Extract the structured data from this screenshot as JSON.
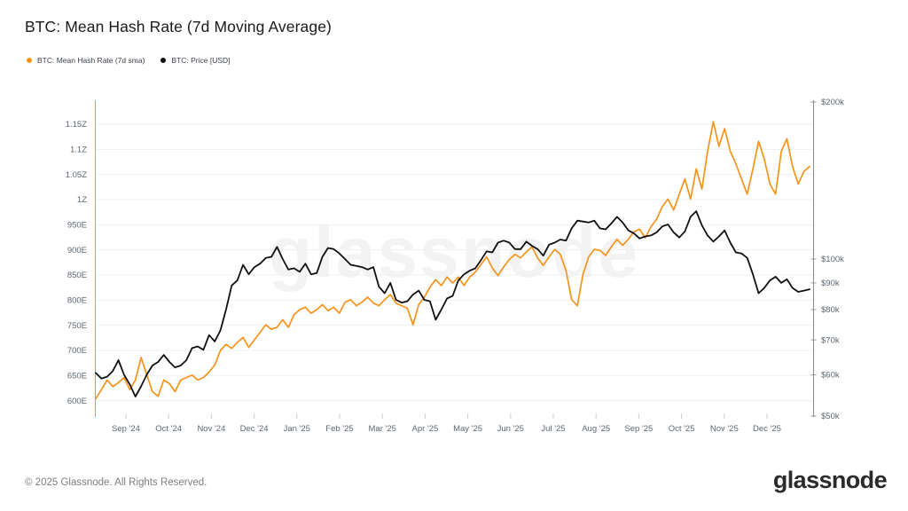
{
  "header": {
    "title": "BTC: Mean Hash Rate (7d Moving Average)"
  },
  "legend": {
    "items": [
      {
        "label": "BTC: Mean Hash Rate (7d sma)",
        "color": "#f7931a"
      },
      {
        "label": "BTC: Price [USD]",
        "color": "#101010"
      }
    ]
  },
  "watermark": {
    "text": "glassnode"
  },
  "footer": {
    "copyright": "© 2025 Glassnode. All Rights Reserved.",
    "logo_text": "glassnode"
  },
  "chart_data": {
    "type": "line",
    "title": "BTC: Mean Hash Rate (7d Moving Average)",
    "grid": "horizontal",
    "legend_position": "top-left",
    "x_range": [
      "Aug 2024",
      "Dec 2025"
    ],
    "x_tick_labels": [
      "Sep '24",
      "Oct '24",
      "Nov '24",
      "Dec '24",
      "Jan '25",
      "Feb '25",
      "Mar '25",
      "Apr '25",
      "May '25",
      "Jun '25",
      "Jul '25",
      "Aug '25",
      "Sep '25",
      "Oct '25",
      "Nov '25",
      "Dec '25"
    ],
    "left_axis": {
      "unit": "hash rate (E = EH/s, Z = ZH/s)",
      "scale": "linear",
      "axis_color": "#f7931a",
      "range": [
        600,
        1150
      ],
      "ticks": [
        {
          "label": "1.15Z",
          "value": 1150
        },
        {
          "label": "1.1Z",
          "value": 1100
        },
        {
          "label": "1.05Z",
          "value": 1050
        },
        {
          "label": "1Z",
          "value": 1000
        },
        {
          "label": "950E",
          "value": 950
        },
        {
          "label": "900E",
          "value": 900
        },
        {
          "label": "850E",
          "value": 850
        },
        {
          "label": "800E",
          "value": 800
        },
        {
          "label": "750E",
          "value": 750
        },
        {
          "label": "700E",
          "value": 700
        },
        {
          "label": "650E",
          "value": 650
        },
        {
          "label": "600E",
          "value": 600
        }
      ]
    },
    "right_axis": {
      "unit": "USD (thousands)",
      "scale": "log",
      "axis_color": "#8a8a8a",
      "range": [
        50,
        200
      ],
      "ticks": [
        {
          "label": "$200k",
          "value": 200
        },
        {
          "label": "$100k",
          "value": 100
        },
        {
          "label": "$90k",
          "value": 90
        },
        {
          "label": "$80k",
          "value": 80
        },
        {
          "label": "$70k",
          "value": 70
        },
        {
          "label": "$60k",
          "value": 60
        },
        {
          "label": "$50k",
          "value": 50
        }
      ]
    },
    "series": [
      {
        "name": "BTC: Mean Hash Rate (7d sma)",
        "color": "#f7931a",
        "axis": "left",
        "unit": "EH/s",
        "values": [
          604,
          622,
          641,
          628,
          636,
          646,
          622,
          641,
          686,
          652,
          618,
          609,
          641,
          634,
          618,
          641,
          646,
          651,
          641,
          646,
          657,
          671,
          700,
          712,
          704,
          716,
          726,
          706,
          721,
          736,
          751,
          742,
          746,
          761,
          746,
          771,
          781,
          786,
          774,
          781,
          791,
          779,
          786,
          774,
          796,
          801,
          789,
          796,
          806,
          794,
          789,
          801,
          811,
          794,
          789,
          784,
          751,
          791,
          806,
          826,
          841,
          829,
          846,
          834,
          846,
          829,
          846,
          856,
          871,
          886,
          864,
          849,
          866,
          881,
          891,
          884,
          896,
          906,
          884,
          869,
          886,
          901,
          891,
          859,
          801,
          789,
          851,
          886,
          901,
          899,
          889,
          906,
          921,
          909,
          921,
          936,
          941,
          924,
          946,
          961,
          986,
          1001,
          979,
          1011,
          1041,
          1001,
          1061,
          1021,
          1096,
          1155,
          1106,
          1141,
          1096,
          1071,
          1041,
          1011,
          1061,
          1116,
          1081,
          1031,
          1011,
          1096,
          1121,
          1066,
          1031,
          1056,
          1066
        ]
      },
      {
        "name": "BTC: Price [USD]",
        "color": "#101010",
        "axis": "right",
        "unit": "USD thousands",
        "values": [
          60.5,
          59,
          59.5,
          61,
          64,
          60,
          57.5,
          54.5,
          57,
          60,
          62.5,
          63.5,
          65.5,
          63.5,
          62,
          62.5,
          64,
          67.5,
          68,
          67,
          71.5,
          69.5,
          73,
          80,
          89,
          91,
          97.5,
          93.5,
          96.5,
          98,
          100.5,
          101,
          105.5,
          100,
          95.5,
          96,
          94.5,
          98,
          93.5,
          94,
          101,
          105,
          104.5,
          102.5,
          100,
          97.5,
          97,
          96.5,
          95.5,
          96.5,
          88.5,
          86,
          90,
          83.5,
          82.5,
          83,
          85.5,
          87,
          83.5,
          83,
          76.5,
          80,
          84,
          85,
          91,
          93.5,
          95,
          96,
          99.5,
          103.5,
          103,
          107.5,
          108.5,
          107.5,
          104.5,
          104.5,
          108,
          106,
          104.5,
          101.5,
          106.5,
          107.5,
          109,
          108.5,
          114.5,
          118.5,
          118,
          117.5,
          118.5,
          114.5,
          114,
          117,
          120.5,
          117.5,
          113.5,
          112,
          109.5,
          110.5,
          111,
          112.5,
          115.5,
          116.5,
          112.5,
          110,
          113,
          120.5,
          123.5,
          116,
          111,
          108,
          110.5,
          113.5,
          107.5,
          103,
          102.5,
          100.5,
          93.5,
          86,
          88,
          91,
          92.5,
          90,
          91.5,
          88,
          86.5,
          87,
          87.5
        ]
      }
    ]
  }
}
